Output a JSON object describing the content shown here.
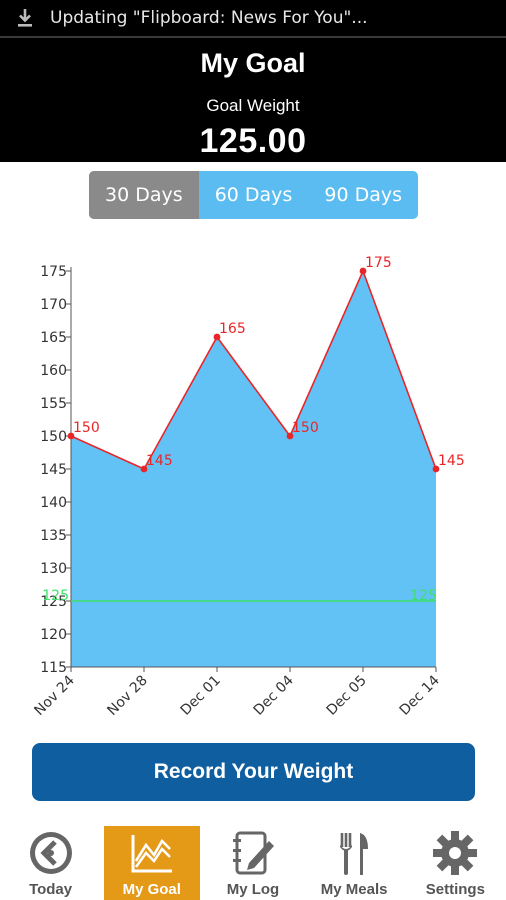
{
  "status_bar": {
    "notification": "Updating \"Flipboard: News For You\"..."
  },
  "header": {
    "title": "My Goal",
    "subtitle": "Goal Weight",
    "goal_value": "125.00"
  },
  "range_tabs": [
    {
      "label": "30 Days",
      "active": true
    },
    {
      "label": "60 Days",
      "active": false
    },
    {
      "label": "90 Days",
      "active": false
    }
  ],
  "chart_data": {
    "type": "area",
    "x": [
      "Nov 24",
      "Nov 28",
      "Dec 01",
      "Dec 04",
      "Dec 05",
      "Dec 14"
    ],
    "series": [
      {
        "values": [
          150,
          145,
          165,
          150,
          175,
          145
        ],
        "fill": "#62c2f6",
        "line": "#e8262a"
      }
    ],
    "goal_line": {
      "value": 125,
      "label": "125",
      "color": "#3de06a"
    },
    "point_labels": [
      "150",
      "145",
      "165",
      "150",
      "175",
      "145"
    ],
    "ylim": [
      115,
      175
    ],
    "yticks": [
      115,
      120,
      125,
      130,
      135,
      140,
      145,
      150,
      155,
      160,
      165,
      170,
      175
    ],
    "grid": false
  },
  "record_button": {
    "label": "Record Your Weight"
  },
  "tabbar": [
    {
      "label": "Today",
      "icon": "clock-back-icon",
      "active": false
    },
    {
      "label": "My Goal",
      "icon": "chart-icon",
      "active": true
    },
    {
      "label": "My Log",
      "icon": "notebook-pencil-icon",
      "active": false
    },
    {
      "label": "My Meals",
      "icon": "fork-knife-icon",
      "active": false
    },
    {
      "label": "Settings",
      "icon": "gear-icon",
      "active": false
    }
  ]
}
